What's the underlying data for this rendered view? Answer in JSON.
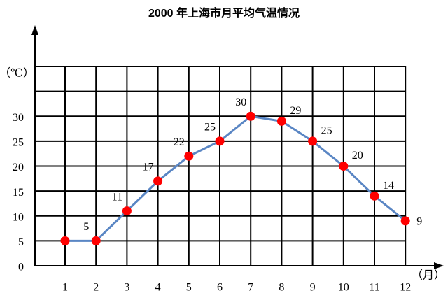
{
  "chart_data": {
    "type": "line",
    "title": "2000 年上海市月平均气温情况",
    "y_label": "（℃）",
    "x_label": "（月）",
    "categories": [
      "1",
      "2",
      "3",
      "4",
      "5",
      "6",
      "7",
      "8",
      "9",
      "10",
      "11",
      "12"
    ],
    "values": [
      5,
      5,
      11,
      17,
      22,
      25,
      30,
      29,
      25,
      20,
      14,
      9
    ],
    "value_labels": [
      null,
      "5",
      "11",
      "17",
      "22",
      "25",
      "30",
      "29",
      "25",
      "20",
      "14",
      "9"
    ],
    "color": "#5a86c4",
    "marker_color": "#ff0000",
    "ylim": [
      0,
      40
    ],
    "yticks": [
      0,
      5,
      10,
      15,
      20,
      25,
      30
    ],
    "grid": true
  }
}
